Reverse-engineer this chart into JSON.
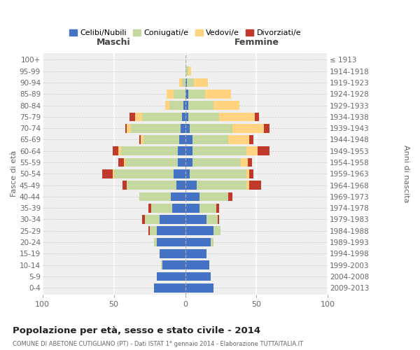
{
  "age_groups": [
    "0-4",
    "5-9",
    "10-14",
    "15-19",
    "20-24",
    "25-29",
    "30-34",
    "35-39",
    "40-44",
    "45-49",
    "50-54",
    "55-59",
    "60-64",
    "65-69",
    "70-74",
    "75-79",
    "80-84",
    "85-89",
    "90-94",
    "95-99",
    "100+"
  ],
  "birth_years": [
    "2009-2013",
    "2004-2008",
    "1999-2003",
    "1994-1998",
    "1989-1993",
    "1984-1988",
    "1979-1983",
    "1974-1978",
    "1969-1973",
    "1964-1968",
    "1959-1963",
    "1954-1958",
    "1949-1953",
    "1944-1948",
    "1939-1943",
    "1934-1938",
    "1929-1933",
    "1924-1928",
    "1919-1923",
    "1914-1918",
    "≤ 1913"
  ],
  "males": {
    "celibi": [
      22,
      20,
      16,
      18,
      20,
      20,
      18,
      9,
      10,
      6,
      8,
      5,
      5,
      4,
      3,
      2,
      1,
      0,
      0,
      0,
      0
    ],
    "coniugati": [
      0,
      0,
      1,
      0,
      2,
      5,
      10,
      15,
      22,
      35,
      42,
      37,
      40,
      25,
      35,
      28,
      10,
      8,
      2,
      0,
      0
    ],
    "vedovi": [
      0,
      0,
      0,
      0,
      0,
      0,
      0,
      0,
      0,
      0,
      1,
      1,
      2,
      2,
      3,
      5,
      3,
      5,
      2,
      0,
      0
    ],
    "divorziati": [
      0,
      0,
      0,
      0,
      0,
      1,
      2,
      2,
      0,
      3,
      7,
      4,
      4,
      1,
      1,
      4,
      0,
      0,
      0,
      0,
      0
    ]
  },
  "females": {
    "nubili": [
      20,
      18,
      17,
      15,
      18,
      20,
      15,
      10,
      10,
      8,
      3,
      5,
      5,
      5,
      3,
      2,
      2,
      2,
      1,
      0,
      0
    ],
    "coniugate": [
      0,
      0,
      0,
      0,
      2,
      5,
      8,
      12,
      20,
      35,
      40,
      34,
      38,
      25,
      30,
      22,
      18,
      12,
      5,
      2,
      0
    ],
    "vedove": [
      0,
      0,
      0,
      0,
      0,
      0,
      0,
      0,
      0,
      2,
      2,
      5,
      8,
      15,
      22,
      25,
      18,
      18,
      10,
      2,
      0
    ],
    "divorziate": [
      0,
      0,
      0,
      0,
      0,
      0,
      1,
      2,
      3,
      8,
      3,
      3,
      8,
      3,
      4,
      3,
      0,
      0,
      0,
      0,
      0
    ]
  },
  "colors": {
    "celibi": "#4472c4",
    "coniugati": "#c5d8a0",
    "vedovi": "#ffd380",
    "divorziati": "#c0392b"
  },
  "xlim": 100,
  "title": "Popolazione per età, sesso e stato civile - 2014",
  "subtitle": "COMUNE DI ABETONE CUTIGLIANO (PT) - Dati ISTAT 1° gennaio 2014 - Elaborazione TUTTAITALIA.IT",
  "ylabel_left": "Fasce di età",
  "ylabel_right": "Anni di nascita",
  "header_left": "Maschi",
  "header_right": "Femmine",
  "legend_labels": [
    "Celibi/Nubili",
    "Coniugati/e",
    "Vedovi/e",
    "Divorziati/e"
  ],
  "bg_color": "#efefef"
}
